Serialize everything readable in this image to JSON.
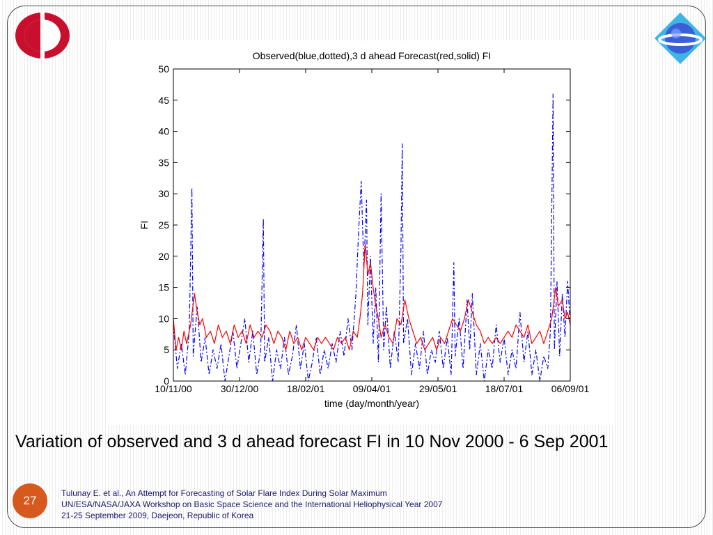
{
  "slide": {
    "caption": "Variation of observed and 3 d ahead forecast FI in 10 Nov 2000 - 6 Sep 2001",
    "page_number": "27",
    "footer": [
      "Tulunay E. et al., An Attempt for Forecasting of Solar Flare Index During Solar Maximum",
      "UN/ESA/NASA/JAXA Workshop on Basic Space Science and the International Heliophysical Year 2007",
      "21-25 September 2009, Daejeon, Republic of Korea"
    ],
    "colors": {
      "badge": "#d65a1d",
      "footer_text": "#1a1a6e",
      "left_logo": "#c8102e",
      "right_logo": "#3b5fd6"
    }
  },
  "chart_data": {
    "type": "line",
    "title": "Observed(blue,dotted),3 d ahead Forecast(red,solid) FI",
    "xlabel": "time (day/month/year)",
    "ylabel": "FI",
    "xlim": [
      "2000-11-10",
      "2001-09-06"
    ],
    "ylim": [
      0,
      50
    ],
    "yticks": [
      0,
      5,
      10,
      15,
      20,
      25,
      30,
      35,
      40,
      45,
      50
    ],
    "xtick_labels": [
      "10/11/00",
      "30/12/00",
      "18/02/01",
      "09/04/01",
      "29/05/01",
      "18/07/01",
      "06/09/01"
    ],
    "xtick_dates": [
      "2000-11-10",
      "2000-12-30",
      "2001-02-18",
      "2001-04-09",
      "2001-05-29",
      "2001-07-18",
      "2001-09-06"
    ],
    "grid": false,
    "series": [
      {
        "name": "Observed",
        "style": "dash-dot",
        "color": "#0000ff",
        "points": [
          [
            "2000-11-10",
            9
          ],
          [
            "2000-11-13",
            2
          ],
          [
            "2000-11-16",
            6
          ],
          [
            "2000-11-19",
            1
          ],
          [
            "2000-11-22",
            8
          ],
          [
            "2000-11-24",
            31
          ],
          [
            "2000-11-25",
            4
          ],
          [
            "2000-11-28",
            12
          ],
          [
            "2000-12-01",
            3
          ],
          [
            "2000-12-04",
            7
          ],
          [
            "2000-12-07",
            1
          ],
          [
            "2000-12-10",
            5
          ],
          [
            "2000-12-13",
            2
          ],
          [
            "2000-12-16",
            6
          ],
          [
            "2000-12-19",
            0
          ],
          [
            "2000-12-22",
            4
          ],
          [
            "2000-12-25",
            8
          ],
          [
            "2000-12-28",
            2
          ],
          [
            "2000-12-31",
            6
          ],
          [
            "2001-01-03",
            10
          ],
          [
            "2001-01-06",
            3
          ],
          [
            "2001-01-09",
            8
          ],
          [
            "2001-01-12",
            1
          ],
          [
            "2001-01-15",
            5
          ],
          [
            "2001-01-17",
            26
          ],
          [
            "2001-01-18",
            3
          ],
          [
            "2001-01-21",
            7
          ],
          [
            "2001-01-24",
            0
          ],
          [
            "2001-01-27",
            5
          ],
          [
            "2001-01-30",
            2
          ],
          [
            "2001-02-02",
            7
          ],
          [
            "2001-02-05",
            1
          ],
          [
            "2001-02-08",
            4
          ],
          [
            "2001-02-11",
            9
          ],
          [
            "2001-02-14",
            2
          ],
          [
            "2001-02-17",
            6
          ],
          [
            "2001-02-20",
            0
          ],
          [
            "2001-02-23",
            3
          ],
          [
            "2001-02-26",
            7
          ],
          [
            "2001-03-01",
            1
          ],
          [
            "2001-03-04",
            5
          ],
          [
            "2001-03-07",
            2
          ],
          [
            "2001-03-10",
            6
          ],
          [
            "2001-03-13",
            3
          ],
          [
            "2001-03-16",
            8
          ],
          [
            "2001-03-19",
            4
          ],
          [
            "2001-03-22",
            10
          ],
          [
            "2001-03-25",
            5
          ],
          [
            "2001-03-28",
            14
          ],
          [
            "2001-03-30",
            24
          ],
          [
            "2001-04-01",
            32
          ],
          [
            "2001-04-03",
            18
          ],
          [
            "2001-04-05",
            29
          ],
          [
            "2001-04-06",
            9
          ],
          [
            "2001-04-08",
            20
          ],
          [
            "2001-04-10",
            6
          ],
          [
            "2001-04-12",
            15
          ],
          [
            "2001-04-14",
            3
          ],
          [
            "2001-04-16",
            30
          ],
          [
            "2001-04-18",
            5
          ],
          [
            "2001-04-20",
            12
          ],
          [
            "2001-04-23",
            2
          ],
          [
            "2001-04-26",
            8
          ],
          [
            "2001-04-29",
            3
          ],
          [
            "2001-05-01",
            21
          ],
          [
            "2001-05-02",
            38
          ],
          [
            "2001-05-03",
            6
          ],
          [
            "2001-05-06",
            10
          ],
          [
            "2001-05-09",
            1
          ],
          [
            "2001-05-12",
            6
          ],
          [
            "2001-05-15",
            2
          ],
          [
            "2001-05-18",
            8
          ],
          [
            "2001-05-21",
            1
          ],
          [
            "2001-05-24",
            5
          ],
          [
            "2001-05-27",
            3
          ],
          [
            "2001-05-30",
            8
          ],
          [
            "2001-06-02",
            2
          ],
          [
            "2001-06-05",
            7
          ],
          [
            "2001-06-08",
            1
          ],
          [
            "2001-06-10",
            19
          ],
          [
            "2001-06-11",
            4
          ],
          [
            "2001-06-14",
            10
          ],
          [
            "2001-06-17",
            2
          ],
          [
            "2001-06-20",
            13
          ],
          [
            "2001-06-22",
            5
          ],
          [
            "2001-06-24",
            14
          ],
          [
            "2001-06-27",
            1
          ],
          [
            "2001-06-30",
            6
          ],
          [
            "2001-07-03",
            0
          ],
          [
            "2001-07-06",
            5
          ],
          [
            "2001-07-09",
            2
          ],
          [
            "2001-07-12",
            9
          ],
          [
            "2001-07-15",
            3
          ],
          [
            "2001-07-18",
            7
          ],
          [
            "2001-07-21",
            1
          ],
          [
            "2001-07-24",
            5
          ],
          [
            "2001-07-27",
            2
          ],
          [
            "2001-07-30",
            11
          ],
          [
            "2001-08-02",
            3
          ],
          [
            "2001-08-05",
            8
          ],
          [
            "2001-08-08",
            1
          ],
          [
            "2001-08-11",
            5
          ],
          [
            "2001-08-14",
            0
          ],
          [
            "2001-08-17",
            4
          ],
          [
            "2001-08-20",
            2
          ],
          [
            "2001-08-22",
            8
          ],
          [
            "2001-08-24",
            46
          ],
          [
            "2001-08-25",
            5
          ],
          [
            "2001-08-27",
            16
          ],
          [
            "2001-08-29",
            4
          ],
          [
            "2001-08-31",
            14
          ],
          [
            "2001-09-02",
            7
          ],
          [
            "2001-09-04",
            16
          ],
          [
            "2001-09-06",
            9
          ]
        ]
      },
      {
        "name": "3 d ahead Forecast",
        "style": "solid",
        "color": "#ff0000",
        "points": [
          [
            "2000-11-10",
            10
          ],
          [
            "2000-11-12",
            5
          ],
          [
            "2000-11-14",
            7
          ],
          [
            "2000-11-16",
            5
          ],
          [
            "2000-11-18",
            8
          ],
          [
            "2000-11-20",
            6
          ],
          [
            "2000-11-23",
            9
          ],
          [
            "2000-11-26",
            14
          ],
          [
            "2000-11-28",
            11
          ],
          [
            "2000-11-30",
            9
          ],
          [
            "2000-12-02",
            10
          ],
          [
            "2000-12-05",
            7
          ],
          [
            "2000-12-08",
            8
          ],
          [
            "2000-12-11",
            6
          ],
          [
            "2000-12-14",
            9
          ],
          [
            "2000-12-17",
            7
          ],
          [
            "2000-12-20",
            8
          ],
          [
            "2000-12-23",
            6
          ],
          [
            "2000-12-26",
            9
          ],
          [
            "2000-12-29",
            7
          ],
          [
            "2001-01-01",
            8
          ],
          [
            "2001-01-04",
            6
          ],
          [
            "2001-01-07",
            9
          ],
          [
            "2001-01-10",
            7
          ],
          [
            "2001-01-13",
            8
          ],
          [
            "2001-01-16",
            7
          ],
          [
            "2001-01-19",
            9
          ],
          [
            "2001-01-22",
            8
          ],
          [
            "2001-01-25",
            6
          ],
          [
            "2001-01-28",
            8
          ],
          [
            "2001-01-31",
            7
          ],
          [
            "2001-02-03",
            5
          ],
          [
            "2001-02-06",
            8
          ],
          [
            "2001-02-09",
            6
          ],
          [
            "2001-02-12",
            7
          ],
          [
            "2001-02-15",
            5
          ],
          [
            "2001-02-18",
            7
          ],
          [
            "2001-02-21",
            6
          ],
          [
            "2001-02-24",
            5
          ],
          [
            "2001-02-27",
            7
          ],
          [
            "2001-03-02",
            6
          ],
          [
            "2001-03-05",
            7
          ],
          [
            "2001-03-08",
            6
          ],
          [
            "2001-03-11",
            5
          ],
          [
            "2001-03-14",
            7
          ],
          [
            "2001-03-17",
            6
          ],
          [
            "2001-03-20",
            7
          ],
          [
            "2001-03-23",
            5
          ],
          [
            "2001-03-26",
            8
          ],
          [
            "2001-03-29",
            7
          ],
          [
            "2001-03-31",
            10
          ],
          [
            "2001-04-02",
            14
          ],
          [
            "2001-04-04",
            22
          ],
          [
            "2001-04-06",
            17
          ],
          [
            "2001-04-08",
            19
          ],
          [
            "2001-04-10",
            15
          ],
          [
            "2001-04-12",
            12
          ],
          [
            "2001-04-14",
            10
          ],
          [
            "2001-04-16",
            7
          ],
          [
            "2001-04-19",
            9
          ],
          [
            "2001-04-22",
            7
          ],
          [
            "2001-04-25",
            6
          ],
          [
            "2001-04-28",
            10
          ],
          [
            "2001-05-01",
            9
          ],
          [
            "2001-05-04",
            13
          ],
          [
            "2001-05-07",
            10
          ],
          [
            "2001-05-10",
            8
          ],
          [
            "2001-05-13",
            6
          ],
          [
            "2001-05-16",
            7
          ],
          [
            "2001-05-19",
            5
          ],
          [
            "2001-05-22",
            6
          ],
          [
            "2001-05-25",
            7
          ],
          [
            "2001-05-28",
            5
          ],
          [
            "2001-05-31",
            7
          ],
          [
            "2001-06-03",
            6
          ],
          [
            "2001-06-06",
            8
          ],
          [
            "2001-06-09",
            10
          ],
          [
            "2001-06-12",
            9
          ],
          [
            "2001-06-15",
            8
          ],
          [
            "2001-06-18",
            10
          ],
          [
            "2001-06-21",
            13
          ],
          [
            "2001-06-24",
            11
          ],
          [
            "2001-06-27",
            9
          ],
          [
            "2001-06-30",
            8
          ],
          [
            "2001-07-03",
            6
          ],
          [
            "2001-07-06",
            7
          ],
          [
            "2001-07-09",
            6
          ],
          [
            "2001-07-12",
            7
          ],
          [
            "2001-07-15",
            6
          ],
          [
            "2001-07-18",
            7
          ],
          [
            "2001-07-21",
            8
          ],
          [
            "2001-07-24",
            7
          ],
          [
            "2001-07-27",
            9
          ],
          [
            "2001-07-30",
            8
          ],
          [
            "2001-08-02",
            7
          ],
          [
            "2001-08-05",
            9
          ],
          [
            "2001-08-08",
            6
          ],
          [
            "2001-08-11",
            7
          ],
          [
            "2001-08-14",
            8
          ],
          [
            "2001-08-17",
            6
          ],
          [
            "2001-08-20",
            8
          ],
          [
            "2001-08-23",
            10
          ],
          [
            "2001-08-26",
            15
          ],
          [
            "2001-08-28",
            12
          ],
          [
            "2001-08-31",
            13
          ],
          [
            "2001-09-02",
            10
          ],
          [
            "2001-09-04",
            11
          ],
          [
            "2001-09-06",
            9
          ]
        ]
      }
    ]
  }
}
